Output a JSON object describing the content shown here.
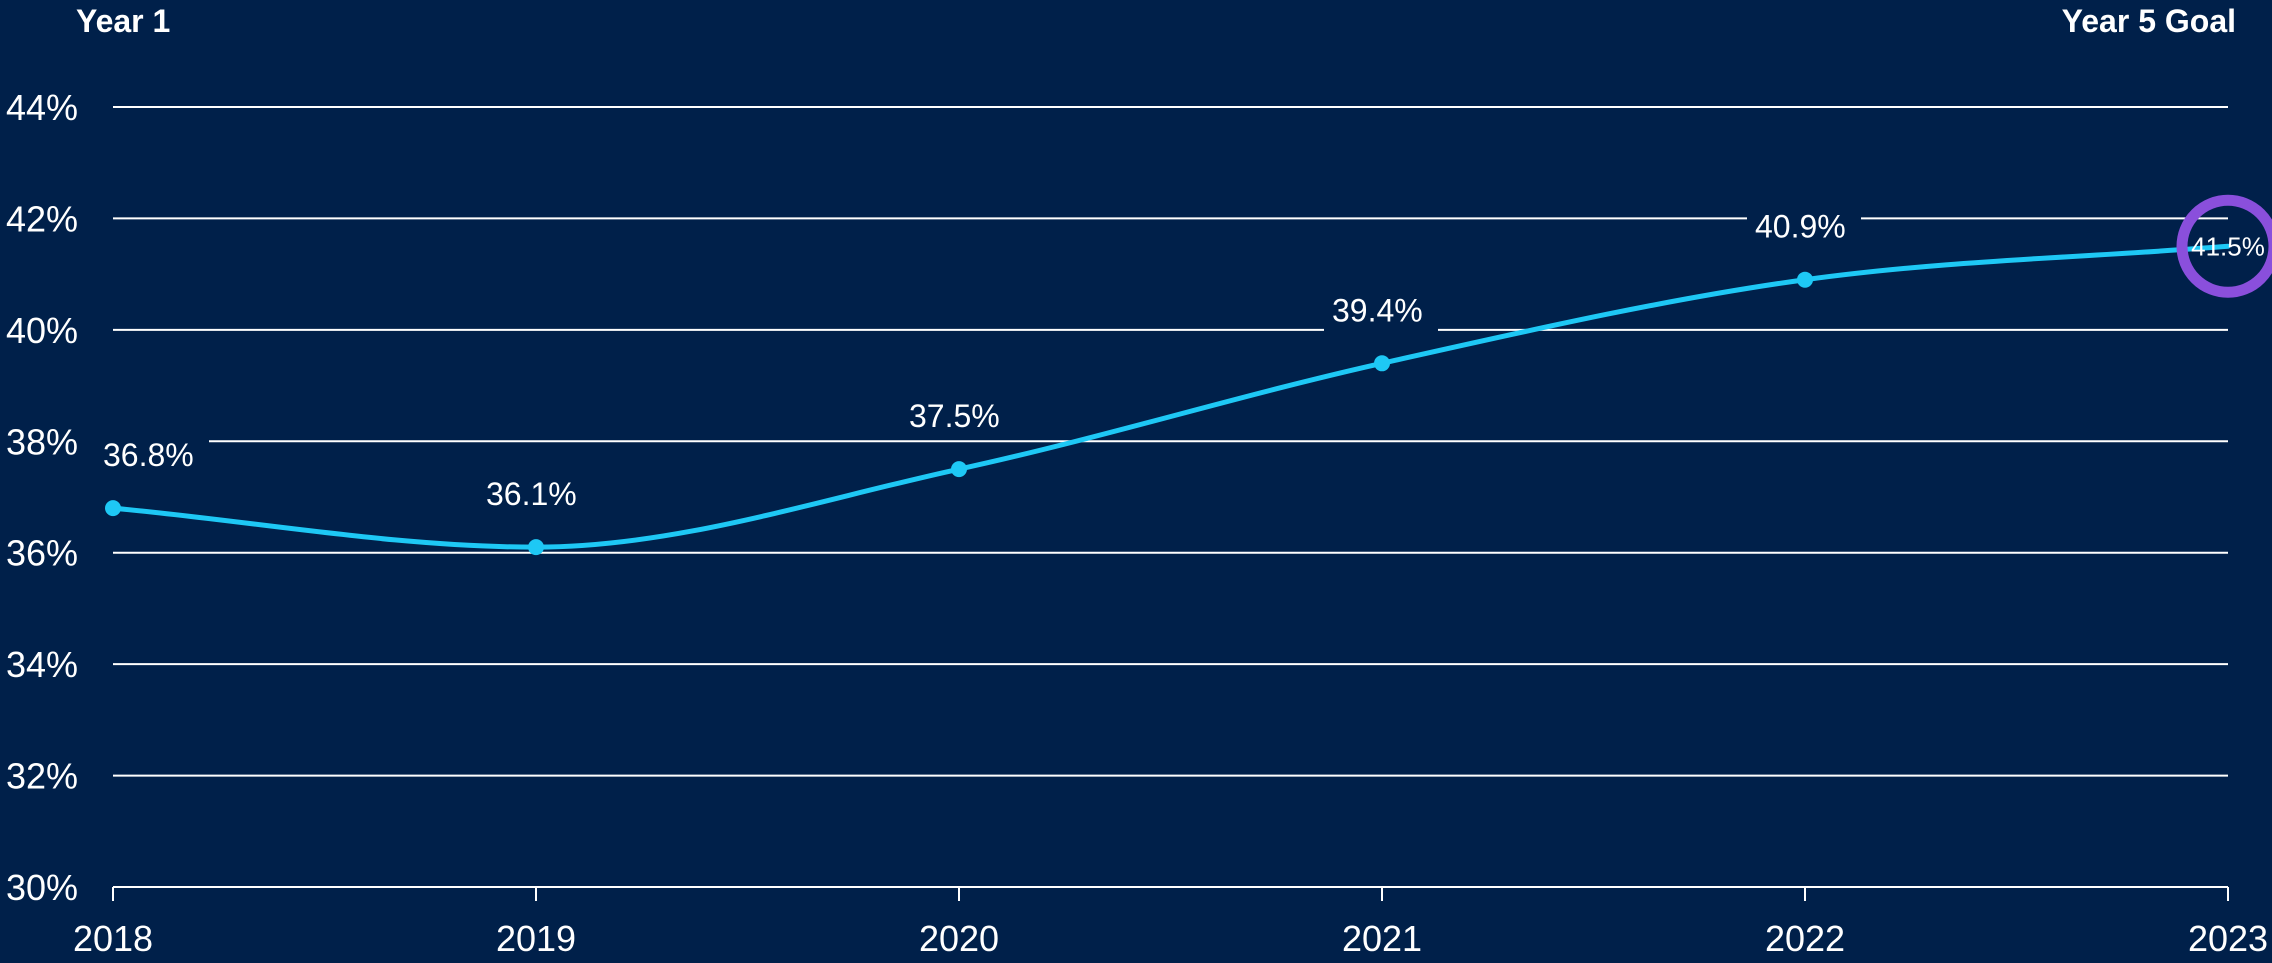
{
  "header": {
    "left_label": "Year 1",
    "right_label": "Year 5 Goal"
  },
  "colors": {
    "background": "#00204a",
    "grid": "#ffffff",
    "line": "#1ec8f5",
    "goal_ring": "#8a4fdc",
    "text": "#ffffff"
  },
  "chart_data": {
    "type": "line",
    "title": "",
    "xlabel": "",
    "ylabel": "",
    "x": [
      2018,
      2019,
      2020,
      2021,
      2022,
      2023
    ],
    "series": [
      {
        "values": [
          36.8,
          36.1,
          37.5,
          39.4,
          40.9,
          41.5
        ]
      }
    ],
    "data_labels": [
      "36.8%",
      "36.1%",
      "37.5%",
      "39.4%",
      "40.9%",
      "41.5%"
    ],
    "x_tick_labels": [
      "2018",
      "2019",
      "2020",
      "2021",
      "2022",
      "2023"
    ],
    "y_ticks": [
      30,
      32,
      34,
      36,
      38,
      40,
      42,
      44
    ],
    "y_tick_labels": [
      "30%",
      "32%",
      "34%",
      "36%",
      "38%",
      "40%",
      "42%",
      "44%"
    ],
    "ylim": [
      30,
      44
    ],
    "grid": true,
    "smooth": true,
    "highlight": {
      "index": 5,
      "label": "41.5%"
    }
  }
}
